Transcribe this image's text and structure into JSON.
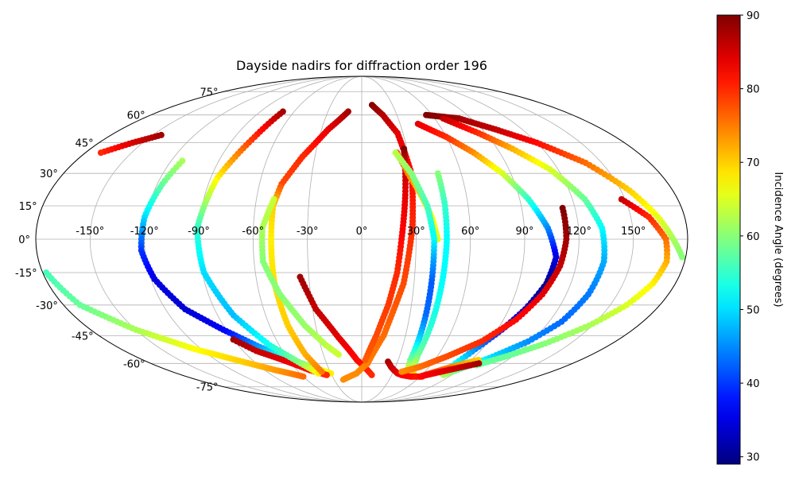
{
  "chart_data": {
    "type": "scatter",
    "projection": "mollweide",
    "title": "Dayside nadirs for diffraction order 196",
    "grid": true,
    "lon_tick_labels": [
      "-150°",
      "-120°",
      "-90°",
      "-60°",
      "-30°",
      "0°",
      "30°",
      "60°",
      "90°",
      "120°",
      "150°"
    ],
    "lon_ticks": [
      -150,
      -120,
      -90,
      -60,
      -30,
      0,
      30,
      60,
      90,
      120,
      150
    ],
    "lat_tick_labels": [
      "-75°",
      "-60°",
      "-45°",
      "-30°",
      "-15°",
      "0°",
      "15°",
      "30°",
      "45°",
      "60°",
      "75°"
    ],
    "lat_ticks": [
      -75,
      -60,
      -45,
      -30,
      -15,
      0,
      15,
      30,
      45,
      60,
      75
    ],
    "colorbar": {
      "label": "Incidence Angle (degrees)",
      "colormap": "jet",
      "range": [
        29,
        90
      ],
      "tick_labels": [
        "30",
        "40",
        "50",
        "60",
        "70",
        "80",
        "90"
      ],
      "ticks": [
        30,
        40,
        50,
        60,
        70,
        80,
        90
      ]
    },
    "series": [
      {
        "points": [
          [
            -144,
            49,
            88
          ],
          [
            -157,
            45,
            85
          ],
          [
            -170,
            40,
            80
          ]
        ]
      },
      {
        "points": [
          [
            -113,
            36,
            62
          ],
          [
            -117,
            25,
            58
          ],
          [
            -121,
            10,
            50
          ],
          [
            -122,
            -5,
            40
          ],
          [
            -118,
            -18,
            35
          ],
          [
            -108,
            -32,
            34
          ],
          [
            -92,
            -42,
            36
          ],
          [
            -75,
            -51,
            46
          ],
          [
            -60,
            -57,
            55
          ],
          [
            -45,
            -62,
            62
          ],
          [
            -30,
            -66,
            68
          ]
        ]
      },
      {
        "points": [
          [
            -178,
            -15,
            56
          ],
          [
            -170,
            -30,
            58
          ],
          [
            -150,
            -42,
            62
          ],
          [
            -125,
            -52,
            67
          ],
          [
            -100,
            -59,
            70
          ],
          [
            -80,
            -64,
            73
          ],
          [
            -60,
            -68,
            76
          ]
        ]
      },
      {
        "points": [
          [
            -90,
            -47,
            88
          ],
          [
            -80,
            -53,
            86
          ],
          [
            -65,
            -58,
            84
          ],
          [
            -48,
            -64,
            82
          ],
          [
            -35,
            -67,
            80
          ]
        ]
      },
      {
        "points": [
          [
            -70,
            62,
            88
          ],
          [
            -76,
            48,
            80
          ],
          [
            -86,
            28,
            68
          ],
          [
            -91,
            5,
            55
          ],
          [
            -89,
            -15,
            50
          ],
          [
            -80,
            -35,
            48
          ],
          [
            -67,
            -50,
            53
          ],
          [
            -52,
            -60,
            60
          ],
          [
            -42,
            -66,
            68
          ]
        ]
      },
      {
        "points": [
          [
            -12,
            62,
            88
          ],
          [
            -25,
            52,
            84
          ],
          [
            -38,
            38,
            80
          ],
          [
            -47,
            25,
            78
          ],
          [
            -50,
            15,
            70
          ],
          [
            -50,
            0,
            68
          ],
          [
            -50,
            -20,
            69
          ],
          [
            -48,
            -40,
            70
          ],
          [
            -44,
            -55,
            72
          ],
          [
            -38,
            -65,
            75
          ]
        ]
      },
      {
        "points": [
          [
            -50,
            18,
            64
          ],
          [
            -55,
            5,
            62
          ],
          [
            -55,
            -10,
            60
          ],
          [
            -48,
            -25,
            60
          ],
          [
            -37,
            -40,
            61
          ],
          [
            -26,
            -50,
            63
          ],
          [
            -18,
            -55,
            64
          ]
        ]
      },
      {
        "points": [
          [
            -35,
            -17,
            88
          ],
          [
            -28,
            -32,
            86
          ],
          [
            -16,
            -46,
            84
          ],
          [
            -4,
            -58,
            82
          ],
          [
            10,
            -67,
            80
          ]
        ]
      },
      {
        "points": [
          [
            10,
            66,
            90
          ],
          [
            18,
            60,
            87
          ],
          [
            26,
            50,
            84
          ],
          [
            30,
            30,
            82
          ],
          [
            28,
            5,
            80
          ],
          [
            24,
            -20,
            78
          ],
          [
            15,
            -45,
            76
          ],
          [
            5,
            -60,
            75
          ],
          [
            -5,
            -66,
            74
          ],
          [
            -20,
            -70,
            74
          ]
        ]
      },
      {
        "points": [
          [
            28,
            42,
            90
          ],
          [
            27,
            35,
            86
          ],
          [
            25,
            20,
            84
          ],
          [
            22,
            0,
            82
          ],
          [
            20,
            -15,
            80
          ],
          [
            16,
            -30,
            79
          ],
          [
            10,
            -45,
            78
          ],
          [
            3,
            -58,
            77
          ]
        ]
      },
      {
        "points": [
          [
            23,
            40,
            78
          ],
          [
            28,
            30,
            74
          ],
          [
            34,
            20,
            70
          ],
          [
            39,
            10,
            67
          ],
          [
            42,
            0,
            65
          ]
        ]
      },
      {
        "points": [
          [
            22,
            40,
            63
          ],
          [
            30,
            30,
            60
          ],
          [
            37,
            15,
            56
          ],
          [
            40,
            0,
            52
          ],
          [
            40,
            -10,
            46
          ],
          [
            40,
            -20,
            42
          ],
          [
            40,
            -35,
            43
          ],
          [
            40,
            -48,
            50
          ],
          [
            40,
            -58,
            58
          ],
          [
            42,
            -63,
            64
          ]
        ]
      },
      {
        "points": [
          [
            46,
            30,
            60
          ],
          [
            47,
            15,
            55
          ],
          [
            47,
            0,
            52
          ],
          [
            46,
            -20,
            52
          ],
          [
            45,
            -40,
            54
          ],
          [
            44,
            -55,
            58
          ],
          [
            46,
            -63,
            64
          ],
          [
            52,
            -67,
            70
          ]
        ]
      },
      {
        "points": [
          [
            22,
            -59,
            88
          ],
          [
            26,
            -62,
            86
          ],
          [
            30,
            -64,
            85
          ],
          [
            35,
            -66,
            84
          ],
          [
            40,
            -67,
            83
          ],
          [
            50,
            -68,
            82
          ],
          [
            62,
            -68,
            81
          ]
        ]
      },
      {
        "points": [
          [
            44,
            55,
            84
          ],
          [
            60,
            48,
            80
          ],
          [
            73,
            40,
            74
          ],
          [
            85,
            30,
            65
          ],
          [
            95,
            18,
            55
          ],
          [
            103,
            5,
            45
          ],
          [
            108,
            -8,
            35
          ],
          [
            106,
            -20,
            30
          ],
          [
            100,
            -32,
            33
          ],
          [
            93,
            -42,
            38
          ],
          [
            85,
            -52,
            45
          ],
          [
            80,
            -60,
            52
          ],
          [
            78,
            -66,
            58
          ]
        ]
      },
      {
        "points": [
          [
            55,
            60,
            90
          ],
          [
            80,
            58,
            88
          ],
          [
            100,
            52,
            86
          ],
          [
            120,
            45,
            82
          ],
          [
            140,
            35,
            76
          ],
          [
            155,
            22,
            70
          ],
          [
            165,
            10,
            66
          ],
          [
            172,
            0,
            62
          ],
          [
            178,
            -8,
            60
          ]
        ]
      },
      {
        "points": [
          [
            67,
            58,
            86
          ],
          [
            85,
            50,
            80
          ],
          [
            100,
            42,
            72
          ],
          [
            115,
            32,
            65
          ],
          [
            127,
            18,
            58
          ],
          [
            133,
            5,
            52
          ],
          [
            135,
            -10,
            47
          ],
          [
            133,
            -25,
            44
          ],
          [
            128,
            -38,
            43
          ],
          [
            118,
            -48,
            45
          ],
          [
            103,
            -57,
            50
          ],
          [
            90,
            -63,
            57
          ],
          [
            82,
            -67,
            62
          ]
        ]
      },
      {
        "points": [
          [
            113,
            14,
            90
          ],
          [
            113,
            0,
            88
          ],
          [
            111,
            -12,
            86
          ],
          [
            106,
            -25,
            84
          ],
          [
            98,
            -37,
            82
          ],
          [
            85,
            -48,
            80
          ],
          [
            68,
            -56,
            78
          ],
          [
            52,
            -62,
            76
          ],
          [
            38,
            -65,
            74
          ]
        ]
      },
      {
        "points": [
          [
            148,
            18,
            86
          ],
          [
            160,
            10,
            80
          ],
          [
            168,
            0,
            76
          ],
          [
            170,
            -10,
            72
          ],
          [
            167,
            -20,
            68
          ],
          [
            160,
            -30,
            65
          ],
          [
            148,
            -40,
            62
          ],
          [
            132,
            -49,
            60
          ],
          [
            115,
            -56,
            58
          ],
          [
            100,
            -61,
            58
          ]
        ]
      },
      {
        "points": [
          [
            96,
            -58,
            70
          ],
          [
            80,
            -62,
            74
          ],
          [
            70,
            -65,
            78
          ],
          [
            60,
            -68,
            82
          ],
          [
            90,
            -62,
            86
          ],
          [
            100,
            -60,
            88
          ]
        ]
      }
    ]
  }
}
